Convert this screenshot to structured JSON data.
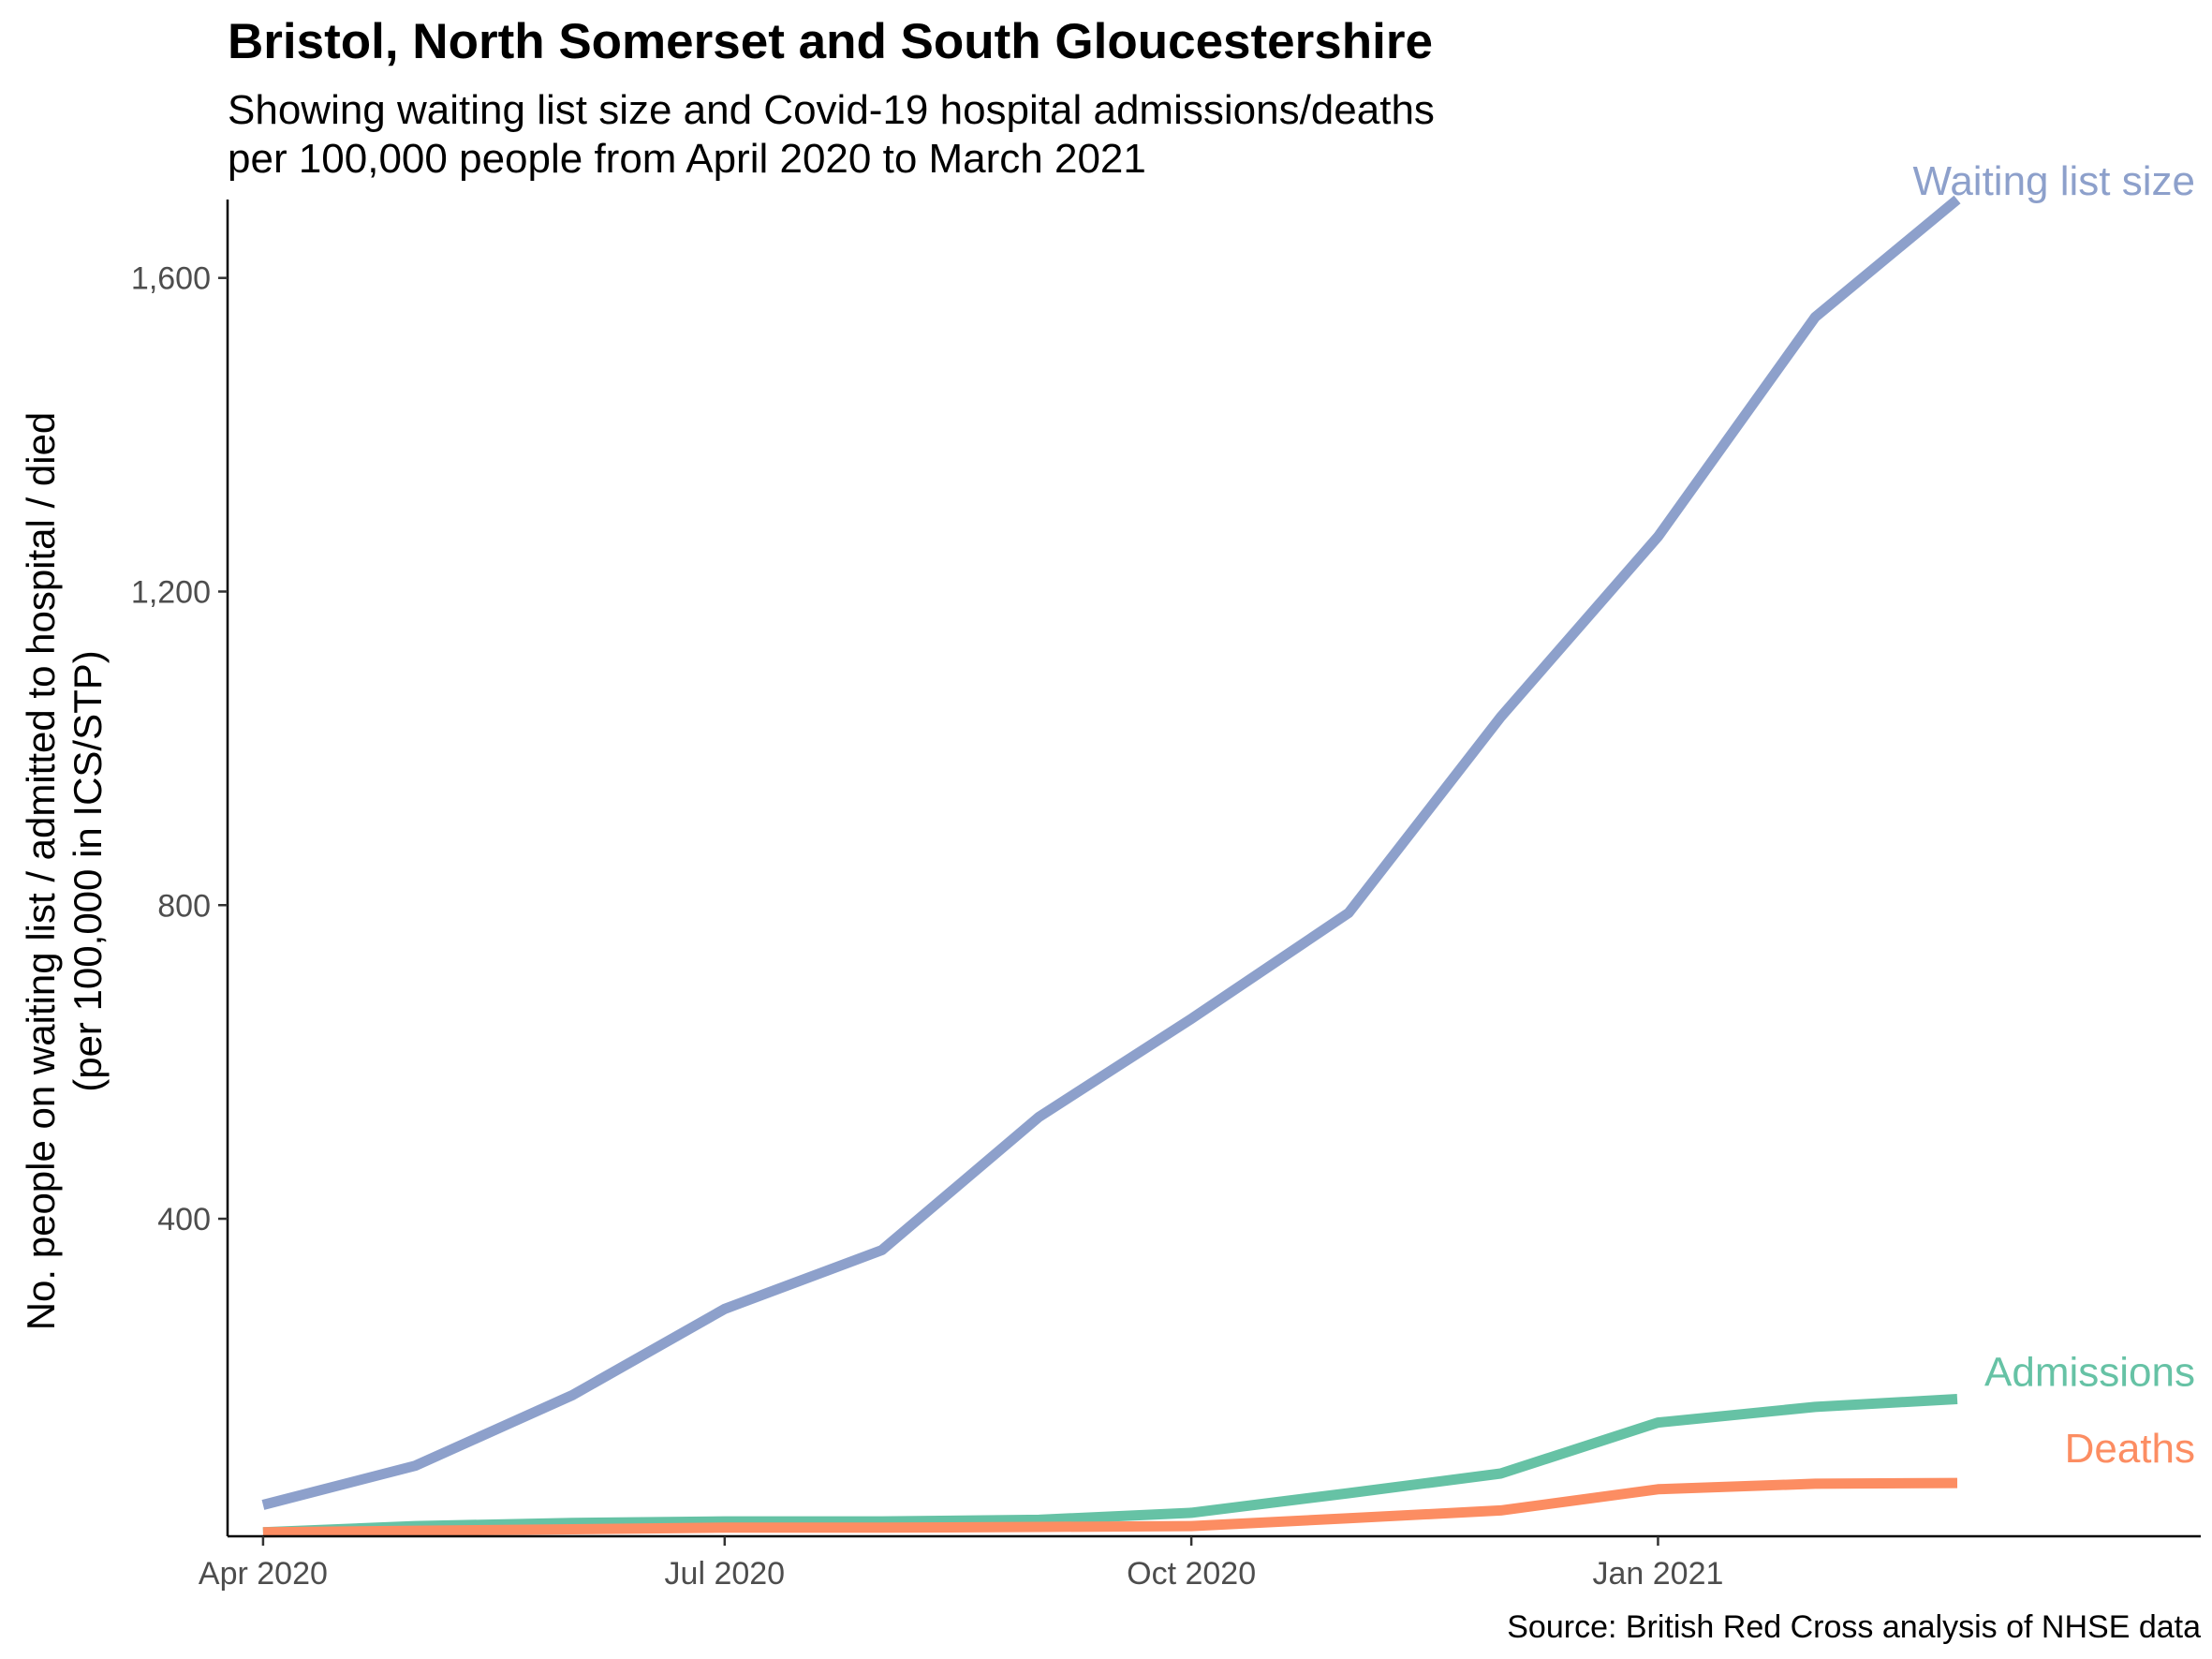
{
  "title": "Bristol, North Somerset and South Gloucestershire",
  "subtitle_lines": [
    "Showing waiting list size and Covid-19 hospital admissions/deaths",
    "per 100,000 people from April 2020 to March 2021"
  ],
  "caption": "Source: British Red Cross analysis of NHSE data",
  "chart_data": {
    "type": "line",
    "title": "Bristol, North Somerset and South Gloucestershire",
    "ylabel_lines": [
      "No. people on waiting list / admitted to hospital / died",
      "(per 100,000 in ICS/STP)"
    ],
    "xlabel": "",
    "x": [
      "2020-04",
      "2020-05",
      "2020-06",
      "2020-07",
      "2020-08",
      "2020-09",
      "2020-10",
      "2020-11",
      "2020-12",
      "2021-01",
      "2021-02",
      "2021-03"
    ],
    "xlim": [
      "2020-03-25",
      "2021-04-18"
    ],
    "ylim": [
      -5,
      1700
    ],
    "x_ticks": [
      {
        "value": "2020-04",
        "label": "Apr 2020"
      },
      {
        "value": "2020-07",
        "label": "Jul 2020"
      },
      {
        "value": "2020-10",
        "label": "Oct 2020"
      },
      {
        "value": "2021-01",
        "label": "Jan 2021"
      }
    ],
    "y_ticks": [
      {
        "value": 400,
        "label": "400"
      },
      {
        "value": 800,
        "label": "800"
      },
      {
        "value": 1200,
        "label": "1,200"
      },
      {
        "value": 1600,
        "label": "1,600"
      }
    ],
    "grid": false,
    "legend": "direct labels at line ends",
    "series": [
      {
        "name": "Waiting list size",
        "color": "#8DA0CB",
        "values": [
          35,
          85,
          175,
          285,
          360,
          530,
          655,
          790,
          1040,
          1270,
          1550,
          1700
        ]
      },
      {
        "name": "Admissions",
        "color": "#66C2A5",
        "values": [
          0,
          8,
          12,
          14,
          14,
          16,
          25,
          50,
          75,
          140,
          160,
          170
        ]
      },
      {
        "name": "Deaths",
        "color": "#FC8D62",
        "values": [
          0,
          2,
          4,
          6,
          6,
          7,
          8,
          18,
          28,
          55,
          62,
          63
        ]
      }
    ]
  }
}
